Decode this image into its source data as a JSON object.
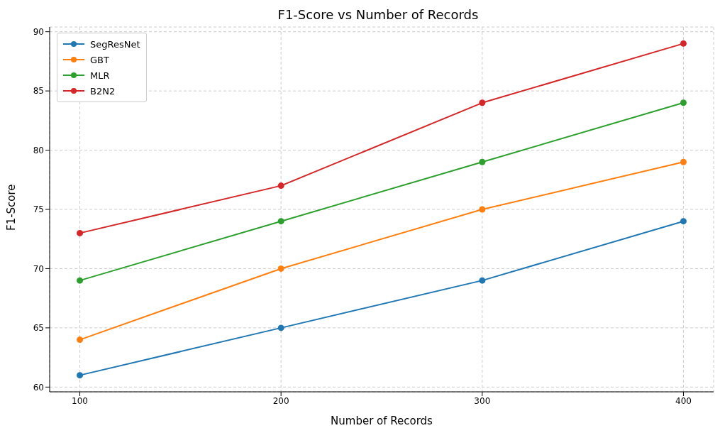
{
  "chart_data": {
    "type": "line",
    "title": "F1-Score vs Number of Records",
    "xlabel": "Number of Records",
    "ylabel": "F1-Score",
    "x": [
      100,
      200,
      300,
      400
    ],
    "series": [
      {
        "name": "SegResNet",
        "color": "#1f77b4",
        "values": [
          61,
          65,
          69,
          74
        ]
      },
      {
        "name": "GBT",
        "color": "#ff7f0e",
        "values": [
          64,
          70,
          75,
          79
        ]
      },
      {
        "name": "MLR",
        "color": "#2ca02c",
        "values": [
          69,
          74,
          79,
          84
        ]
      },
      {
        "name": "B2N2",
        "color": "#d62728",
        "values": [
          73,
          77,
          84,
          89
        ]
      }
    ],
    "xlim": [
      85,
      415
    ],
    "xticks": [
      100,
      200,
      300,
      400
    ],
    "ylim": [
      59.6,
      90.4
    ],
    "yticks": [
      60,
      65,
      70,
      75,
      80,
      85,
      90
    ],
    "grid": true,
    "legend": "top left",
    "marker": "circle",
    "line_style": "solid"
  }
}
